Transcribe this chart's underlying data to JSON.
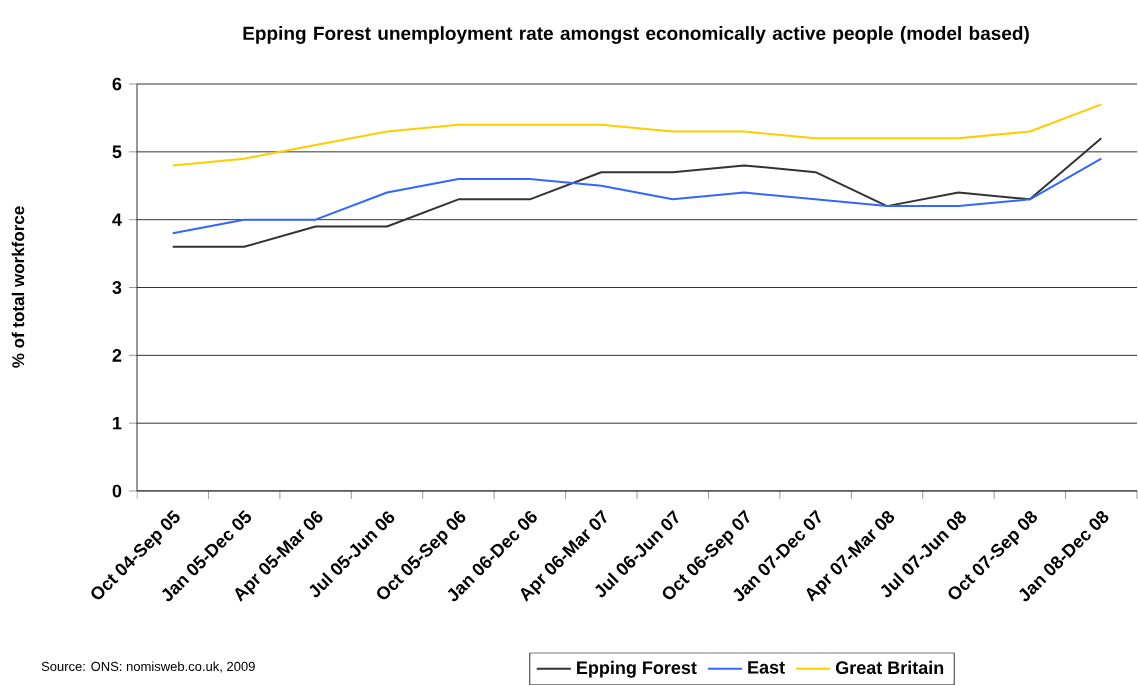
{
  "chart_data": {
    "type": "line",
    "title": "Epping Forest unemployment rate amongst economically active people (model based)",
    "ylabel": "% of total workforce",
    "categories": [
      "Oct 04-Sep 05",
      "Jan 05-Dec 05",
      "Apr 05-Mar 06",
      "Jul 05-Jun 06",
      "Oct 05-Sep 06",
      "Jan 06-Dec 06",
      "Apr 06-Mar 07",
      "Jul 06-Jun 07",
      "Oct 06-Sep 07",
      "Jan 07-Dec 07",
      "Apr 07-Mar 08",
      "Jul 07-Jun 08",
      "Oct 07-Sep 08",
      "Jan 08-Dec 08"
    ],
    "series": [
      {
        "name": "Epping Forest",
        "color": "#333333",
        "values": [
          3.6,
          3.6,
          3.9,
          3.9,
          4.3,
          4.3,
          4.7,
          4.7,
          4.8,
          4.7,
          4.2,
          4.4,
          4.3,
          5.2
        ]
      },
      {
        "name": "East",
        "color": "#3366ff",
        "values": [
          3.8,
          4.0,
          4.0,
          4.4,
          4.6,
          4.6,
          4.5,
          4.3,
          4.4,
          4.3,
          4.2,
          4.2,
          4.3,
          4.9
        ]
      },
      {
        "name": "Great Britain",
        "color": "#ffcc00",
        "values": [
          4.8,
          4.9,
          5.1,
          5.3,
          5.4,
          5.4,
          5.4,
          5.3,
          5.3,
          5.2,
          5.2,
          5.2,
          5.3,
          5.7
        ]
      }
    ],
    "ylim": [
      0,
      6
    ],
    "yticks": [
      0,
      1,
      2,
      3,
      4,
      5,
      6
    ],
    "grid": "y",
    "legend": "bottom",
    "marker": "none",
    "line_style": "solid",
    "annotations": [
      "Source: ONS: nomisweb.co.uk, 2009"
    ]
  }
}
